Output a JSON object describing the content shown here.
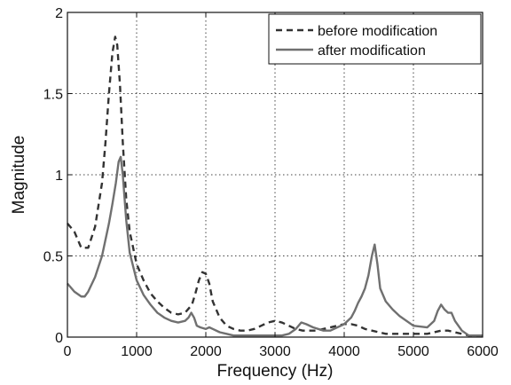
{
  "chart_data": {
    "type": "line",
    "title": "",
    "xlabel": "Frequency (Hz)",
    "ylabel": "Magnitude",
    "xlim": [
      0,
      6000
    ],
    "ylim": [
      0,
      2
    ],
    "x_ticks": [
      0,
      1000,
      2000,
      3000,
      4000,
      5000,
      6000
    ],
    "y_ticks": [
      0,
      0.5,
      1,
      1.5,
      2
    ],
    "x_tick_labels": [
      "0",
      "1000",
      "2000",
      "3000",
      "4000",
      "5000",
      "6000"
    ],
    "y_tick_labels": [
      "0",
      "0.5",
      "1",
      "1.5",
      "2"
    ],
    "grid": true,
    "legend_position": "top-right",
    "series": [
      {
        "name": "before modification",
        "color": "#333333",
        "dash": "dashed",
        "x": [
          0,
          100,
          200,
          300,
          400,
          500,
          550,
          600,
          650,
          690,
          720,
          760,
          800,
          850,
          900,
          1000,
          1100,
          1200,
          1300,
          1400,
          1500,
          1600,
          1700,
          1800,
          1850,
          1900,
          1950,
          2000,
          2050,
          2100,
          2200,
          2300,
          2400,
          2500,
          2600,
          2700,
          2800,
          2900,
          3000,
          3100,
          3200,
          3300,
          3400,
          3500,
          3600,
          3700,
          3800,
          3900,
          4000,
          4100,
          4200,
          4300,
          4400,
          4500,
          4600,
          4800,
          5000,
          5200,
          5300,
          5400,
          5450,
          5500,
          5600,
          5700,
          5800,
          6000
        ],
        "y": [
          0.7,
          0.65,
          0.55,
          0.55,
          0.68,
          0.95,
          1.2,
          1.5,
          1.75,
          1.85,
          1.8,
          1.55,
          1.2,
          0.85,
          0.65,
          0.45,
          0.35,
          0.27,
          0.22,
          0.18,
          0.15,
          0.14,
          0.15,
          0.2,
          0.27,
          0.35,
          0.4,
          0.39,
          0.33,
          0.22,
          0.12,
          0.07,
          0.05,
          0.04,
          0.04,
          0.05,
          0.07,
          0.09,
          0.1,
          0.09,
          0.07,
          0.05,
          0.04,
          0.04,
          0.04,
          0.05,
          0.06,
          0.07,
          0.08,
          0.08,
          0.07,
          0.05,
          0.04,
          0.03,
          0.02,
          0.02,
          0.02,
          0.02,
          0.03,
          0.04,
          0.04,
          0.04,
          0.03,
          0.02,
          0.01,
          0.01
        ]
      },
      {
        "name": "after modification",
        "color": "#707070",
        "dash": "solid",
        "x": [
          0,
          100,
          200,
          250,
          300,
          400,
          500,
          600,
          650,
          700,
          740,
          770,
          800,
          850,
          900,
          1000,
          1100,
          1200,
          1300,
          1400,
          1500,
          1600,
          1700,
          1750,
          1790,
          1830,
          1870,
          1920,
          2000,
          2050,
          2100,
          2200,
          2400,
          2600,
          2800,
          3000,
          3100,
          3200,
          3300,
          3380,
          3450,
          3550,
          3700,
          3800,
          3900,
          4000,
          4100,
          4150,
          4200,
          4250,
          4300,
          4350,
          4400,
          4440,
          4480,
          4520,
          4600,
          4700,
          4800,
          5000,
          5200,
          5300,
          5350,
          5400,
          5450,
          5500,
          5550,
          5600,
          5700,
          5800,
          6000
        ],
        "y": [
          0.33,
          0.28,
          0.25,
          0.25,
          0.28,
          0.37,
          0.5,
          0.7,
          0.82,
          0.95,
          1.08,
          1.11,
          1.0,
          0.72,
          0.52,
          0.35,
          0.26,
          0.2,
          0.15,
          0.12,
          0.1,
          0.09,
          0.1,
          0.12,
          0.15,
          0.12,
          0.07,
          0.06,
          0.05,
          0.06,
          0.05,
          0.03,
          0.01,
          0.01,
          0.01,
          0.01,
          0.01,
          0.02,
          0.05,
          0.09,
          0.08,
          0.06,
          0.04,
          0.04,
          0.06,
          0.08,
          0.12,
          0.16,
          0.21,
          0.25,
          0.3,
          0.38,
          0.5,
          0.57,
          0.45,
          0.3,
          0.22,
          0.17,
          0.13,
          0.07,
          0.06,
          0.1,
          0.16,
          0.2,
          0.17,
          0.15,
          0.15,
          0.1,
          0.04,
          0.01,
          0.01
        ]
      }
    ]
  }
}
